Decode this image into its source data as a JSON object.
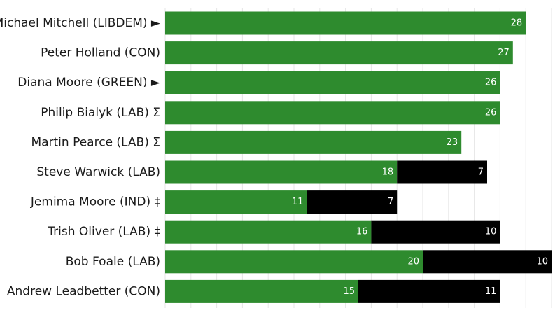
{
  "chart_data": {
    "type": "bar",
    "orientation": "horizontal",
    "stacked": true,
    "categories": [
      "Michael Mitchell (LIBDEM) ►",
      "Peter Holland (CON)",
      "Diana Moore (GREEN) ►",
      "Philip Bialyk (LAB) Σ",
      "Martin Pearce (LAB) Σ",
      "Steve Warwick (LAB)",
      "Jemima Moore (IND) ‡",
      "Trish Oliver (LAB) ‡",
      "Bob Foale (LAB)",
      "Andrew Leadbetter (CON)"
    ],
    "series": [
      {
        "color": "#2e8b2e",
        "values": [
          28,
          27,
          26,
          26,
          23,
          18,
          11,
          16,
          20,
          15
        ]
      },
      {
        "color": "#000000",
        "values": [
          0,
          0,
          0,
          0,
          0,
          7,
          7,
          10,
          10,
          11
        ]
      }
    ],
    "xlim": [
      0,
      30
    ],
    "grid": true,
    "legend": "none"
  }
}
